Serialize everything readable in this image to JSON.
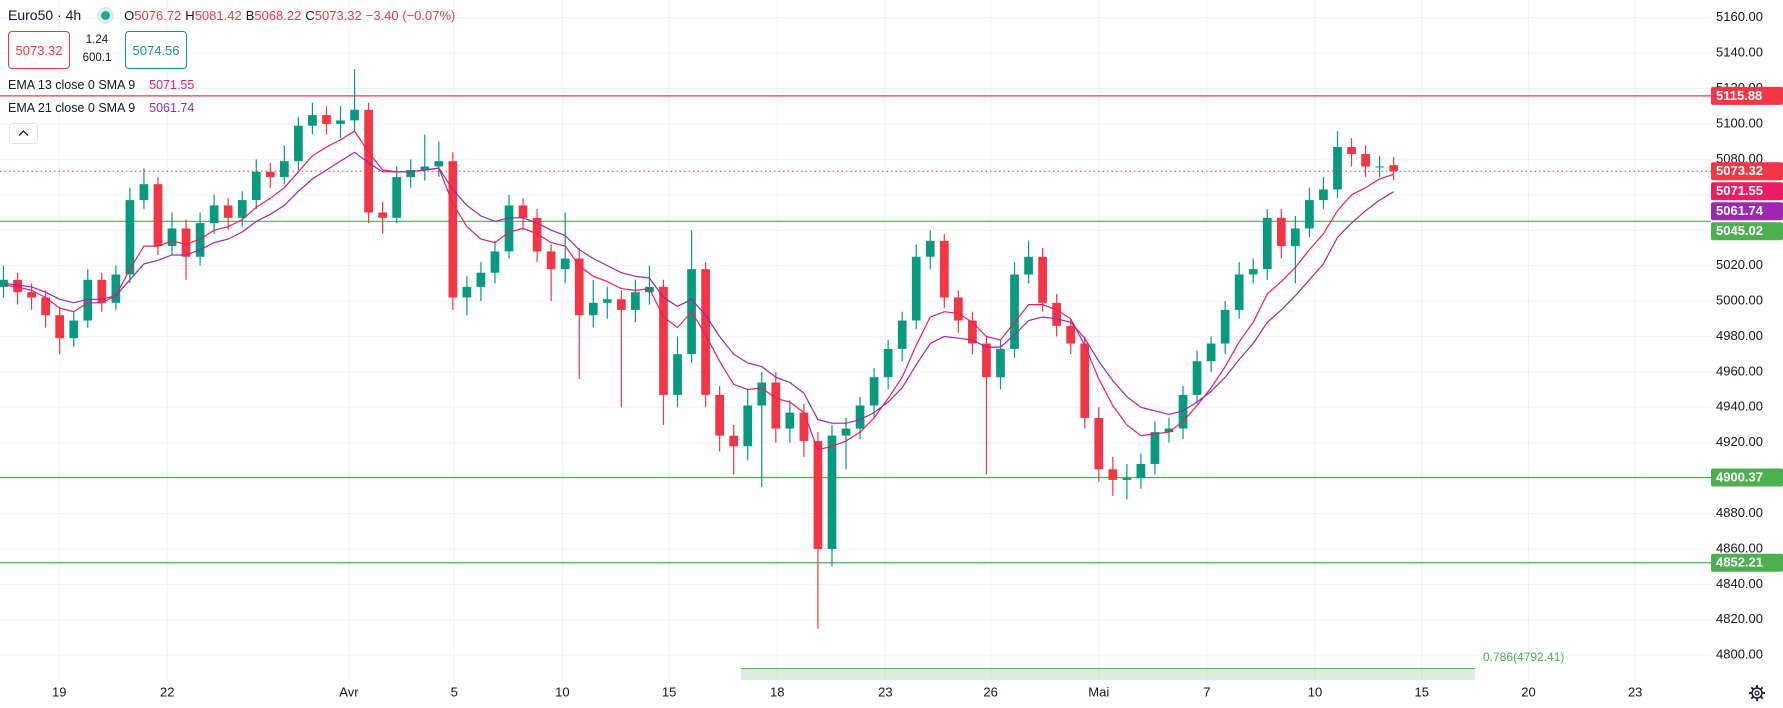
{
  "chart_data": {
    "type": "candlestick",
    "symbol": "Euro50 · 4h",
    "ohlc_keys": [
      "O",
      "H",
      "B",
      "C"
    ],
    "change": "−3.40 (−0.07%)",
    "quote": {
      "spread": 1.24,
      "volume": 600.1,
      "buy": 5074.56
    },
    "xlim": [
      -0.25,
      121.6
    ],
    "xticks": [
      {
        "value": 3.97,
        "label": "19"
      },
      {
        "value": 11.66,
        "label": "22"
      },
      {
        "value": 24.6,
        "label": "Avr"
      },
      {
        "value": 32.1,
        "label": "5"
      },
      {
        "value": 39.8,
        "label": "10"
      },
      {
        "value": 47.4,
        "label": "15"
      },
      {
        "value": 55.1,
        "label": "18"
      },
      {
        "value": 62.8,
        "label": "23"
      },
      {
        "value": 70.3,
        "label": "26"
      },
      {
        "value": 78.0,
        "label": "Mai"
      },
      {
        "value": 85.7,
        "label": "7"
      },
      {
        "value": 93.4,
        "label": "10"
      },
      {
        "value": 101.0,
        "label": "15"
      },
      {
        "value": 108.6,
        "label": "20"
      },
      {
        "value": 116.2,
        "label": "23"
      }
    ],
    "ylim": [
      4786,
      5170
    ],
    "yticks": [
      {
        "value": 4800,
        "label": "4800.00"
      },
      {
        "value": 4820,
        "label": "4820.00"
      },
      {
        "value": 4840,
        "label": "4840.00"
      },
      {
        "value": 4860,
        "label": "4860.00"
      },
      {
        "value": 4880,
        "label": "4880.00"
      },
      {
        "value": 4900,
        "label": "4900.00"
      },
      {
        "value": 4920,
        "label": "4920.00"
      },
      {
        "value": 4940,
        "label": "4940.00"
      },
      {
        "value": 4960,
        "label": "4960.00"
      },
      {
        "value": 4980,
        "label": "4980.00"
      },
      {
        "value": 5000,
        "label": "5000.00"
      },
      {
        "value": 5020,
        "label": "5020.00"
      },
      {
        "value": 5040,
        "label": "5040.00"
      },
      {
        "value": 5060,
        "label": "5060.00"
      },
      {
        "value": 5080,
        "label": "5080.00"
      },
      {
        "value": 5100,
        "label": "5100.00"
      },
      {
        "value": 5120,
        "label": "5120.00"
      },
      {
        "value": 5140,
        "label": "5140.00"
      },
      {
        "value": 5160,
        "label": "5160.00"
      }
    ],
    "grid": true,
    "colors": {
      "up": "#089981",
      "down": "#f23645"
    },
    "open": [
      5008,
      5012,
      5005,
      5002,
      4992,
      4979,
      4989,
      5012,
      4999,
      5015,
      5057,
      5066,
      5031,
      5041,
      5025,
      5044,
      5054,
      5047,
      5057,
      5073,
      5070,
      5079,
      5099,
      5105,
      5100,
      5102,
      5108,
      5050,
      5047,
      5070,
      5074,
      5076,
      5079,
      5002,
      5008,
      5016,
      5028,
      5054,
      5047,
      5028,
      5018,
      5024,
      4992,
      4999,
      5001,
      4995,
      5005,
      5008,
      4947,
      4970,
      5018,
      4947,
      4924,
      4918,
      4941,
      4954,
      4928,
      4937,
      4921,
      4860,
      4924,
      4928,
      4941,
      4957,
      4973,
      4989,
      5025,
      5034,
      5002,
      4989,
      4976,
      4957,
      4973,
      5015,
      5025,
      4999,
      4986,
      4976,
      4934,
      4905,
      4899,
      4900,
      4908,
      4926,
      4928,
      4947,
      4966,
      4976,
      4995,
      5015,
      5018,
      5047,
      5031,
      5041,
      5057,
      5063,
      5087,
      5083,
      5076,
      5076.72
    ],
    "high": [
      5020,
      5016,
      5010,
      5006,
      4996,
      4994,
      5018,
      5016,
      5020,
      5064,
      5075,
      5070,
      5050,
      5046,
      5050,
      5060,
      5058,
      5062,
      5080,
      5078,
      5088,
      5104,
      5112,
      5110,
      5110,
      5131,
      5112,
      5056,
      5076,
      5080,
      5094,
      5090,
      5084,
      5014,
      5022,
      5034,
      5060,
      5058,
      5052,
      5032,
      5050,
      5030,
      5012,
      5008,
      5006,
      5012,
      5020,
      5012,
      4980,
      5040,
      5022,
      4952,
      4930,
      4950,
      4960,
      4960,
      4944,
      4942,
      4926,
      4930,
      4934,
      4946,
      4962,
      4978,
      4994,
      5032,
      5040,
      5038,
      5006,
      4994,
      4980,
      4978,
      5022,
      5034,
      5030,
      5004,
      4990,
      4980,
      4940,
      4912,
      4908,
      4914,
      4932,
      4934,
      4952,
      4972,
      4980,
      5000,
      5022,
      5024,
      5052,
      5052,
      5048,
      5064,
      5070,
      5096,
      5092,
      5088,
      5082,
      5081.42
    ],
    "low": [
      5002,
      4998,
      4995,
      4985,
      4970,
      4974,
      4985,
      4994,
      4995,
      5010,
      5052,
      5026,
      5026,
      5012,
      5020,
      5038,
      5040,
      5042,
      5052,
      5064,
      5066,
      5074,
      5094,
      5094,
      5092,
      5096,
      5044,
      5038,
      5044,
      5064,
      5068,
      5070,
      4995,
      4992,
      5000,
      5010,
      5024,
      5040,
      5022,
      5000,
      5010,
      4956,
      4985,
      4990,
      4940,
      4988,
      4998,
      4930,
      4940,
      4965,
      4940,
      4915,
      4902,
      4910,
      4895,
      4920,
      4920,
      4912,
      4815,
      4850,
      4905,
      4922,
      4934,
      4950,
      4966,
      4984,
      5018,
      4996,
      4982,
      4970,
      4902,
      4950,
      4968,
      5010,
      4994,
      4980,
      4970,
      4928,
      4898,
      4890,
      4888,
      4894,
      4902,
      4920,
      4922,
      4942,
      4960,
      4970,
      4990,
      5010,
      5012,
      5024,
      5010,
      5036,
      5052,
      5058,
      5076,
      5070,
      5070,
      5068.22
    ],
    "close": [
      5012,
      5005,
      5002,
      4992,
      4979,
      4989,
      5012,
      4999,
      5015,
      5057,
      5066,
      5031,
      5041,
      5025,
      5044,
      5054,
      5047,
      5057,
      5073,
      5070,
      5079,
      5099,
      5105,
      5100,
      5102,
      5108,
      5050,
      5047,
      5070,
      5074,
      5076,
      5079,
      5002,
      5008,
      5016,
      5028,
      5054,
      5047,
      5028,
      5018,
      5024,
      4992,
      4999,
      5001,
      4995,
      5005,
      5008,
      4947,
      4970,
      5018,
      4947,
      4924,
      4918,
      4941,
      4954,
      4928,
      4937,
      4921,
      4860,
      4924,
      4928,
      4941,
      4957,
      4973,
      4989,
      5025,
      5034,
      5002,
      4989,
      4976,
      4957,
      4973,
      5015,
      5025,
      4999,
      4986,
      4976,
      4934,
      4905,
      4899,
      4900,
      4908,
      4926,
      4928,
      4947,
      4966,
      4976,
      4995,
      5015,
      5018,
      5047,
      5031,
      5041,
      5057,
      5063,
      5087,
      5083,
      5076,
      5076,
      5073.32
    ],
    "series": [
      {
        "name": "EMA 13 close 0 SMA 9",
        "color": "#e91e63",
        "values": [
          5009,
          5008,
          5006,
          5002,
          4996,
          4994,
          4999,
          4999,
          5003,
          5018,
          5031,
          5031,
          5034,
          5032,
          5035,
          5040,
          5042,
          5046,
          5053,
          5058,
          5064,
          5073,
          5082,
          5087,
          5091,
          5096,
          5084,
          5074,
          5073,
          5073,
          5074,
          5075,
          5055,
          5042,
          5035,
          5033,
          5039,
          5041,
          5038,
          5033,
          5031,
          5020,
          5014,
          5011,
          5007,
          5006,
          5007,
          4991,
          4985,
          4994,
          4981,
          4966,
          4953,
          4950,
          4951,
          4945,
          4943,
          4937,
          4916,
          4918,
          4921,
          4926,
          4934,
          4945,
          4957,
          4975,
          4991,
          4994,
          4993,
          4988,
          4980,
          4978,
          4988,
          4998,
          4998,
          4995,
          4990,
          4975,
          4956,
          4941,
          4930,
          4924,
          4925,
          4926,
          4932,
          4941,
          4951,
          4963,
          4977,
          4988,
          5004,
          5011,
          5019,
          5029,
          5038,
          5051,
          5060,
          5064,
          5069,
          5071.55
        ]
      },
      {
        "name": "EMA 21 close 0 SMA 9",
        "color": "#9c27b0",
        "values": [
          5010,
          5009,
          5008,
          5005,
          5001,
          4999,
          5001,
          5001,
          5003,
          5012,
          5021,
          5023,
          5026,
          5026,
          5029,
          5033,
          5035,
          5039,
          5045,
          5049,
          5054,
          5062,
          5069,
          5074,
          5079,
          5084,
          5078,
          5073,
          5073,
          5073,
          5074,
          5075,
          5063,
          5054,
          5048,
          5045,
          5047,
          5047,
          5044,
          5040,
          5037,
          5029,
          5024,
          5020,
          5016,
          5014,
          5013,
          5002,
          4997,
          5001,
          4992,
          4980,
          4970,
          4965,
          4963,
          4957,
          4954,
          4948,
          4933,
          4931,
          4931,
          4933,
          4937,
          4943,
          4951,
          4964,
          4976,
          4980,
          4979,
          4978,
          4974,
          4974,
          4981,
          4989,
          4991,
          4990,
          4988,
          4979,
          4966,
          4955,
          4946,
          4940,
          4938,
          4936,
          4938,
          4943,
          4949,
          4957,
          4967,
          4976,
          4988,
          4995,
          5003,
          5012,
          5021,
          5036,
          5044,
          5051,
          5057,
          5061.74
        ]
      }
    ],
    "levels": [
      {
        "value": 5115.88,
        "color": "#f23645"
      },
      {
        "value": 5045.02,
        "color": "#4caf50"
      },
      {
        "value": 4900.37,
        "color": "#4caf50"
      },
      {
        "value": 4852.21,
        "color": "#4caf50"
      }
    ],
    "fib": {
      "label": "0.786(4792.41)",
      "value": 4792.41,
      "color": "#4caf50"
    }
  }
}
